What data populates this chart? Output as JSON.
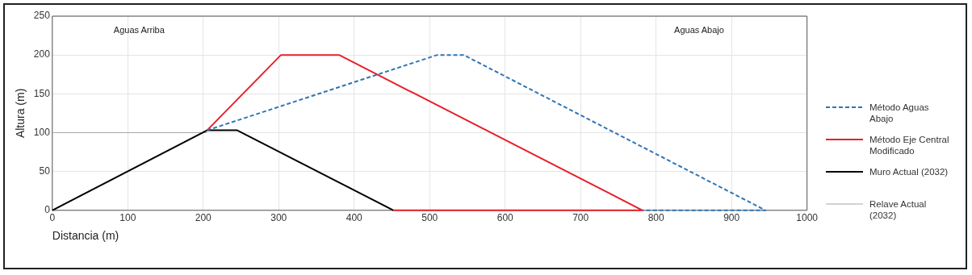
{
  "chart_data": {
    "type": "line",
    "xlabel": "Distancia (m)",
    "ylabel": "Altura (m)",
    "xlim": [
      0,
      1000
    ],
    "xticks": [
      0,
      100,
      200,
      300,
      400,
      500,
      600,
      700,
      800,
      900,
      1000
    ],
    "ylim": [
      0,
      250
    ],
    "yticks": [
      0,
      50,
      100,
      150,
      200,
      250
    ],
    "grid": true,
    "legend": "right",
    "marker": "none",
    "annotations": [
      "Aguas Arriba",
      "Aguas Abajo"
    ],
    "series": [
      {
        "name": "Método Aguas Abajo",
        "color": "#2e75b6",
        "line_style": "dashed",
        "x": [
          205,
          510,
          545,
          945,
          782
        ],
        "values": [
          103,
          200,
          200,
          0,
          0
        ]
      },
      {
        "name": "Método Eje Central Modificado",
        "color": "#e8202a",
        "line_style": "solid",
        "x": [
          205,
          303,
          380,
          782,
          452
        ],
        "values": [
          103,
          200,
          200,
          0,
          0
        ]
      },
      {
        "name": "Muro Actual (2032)",
        "color": "#000000",
        "line_style": "solid",
        "x": [
          0,
          205,
          245,
          452
        ],
        "values": [
          0,
          103,
          103,
          0
        ]
      },
      {
        "name": "Relave Actual (2032)",
        "color": "#a6a6a6",
        "line_style": "solid",
        "x": [
          0,
          205
        ],
        "values": [
          100,
          100
        ]
      }
    ]
  }
}
